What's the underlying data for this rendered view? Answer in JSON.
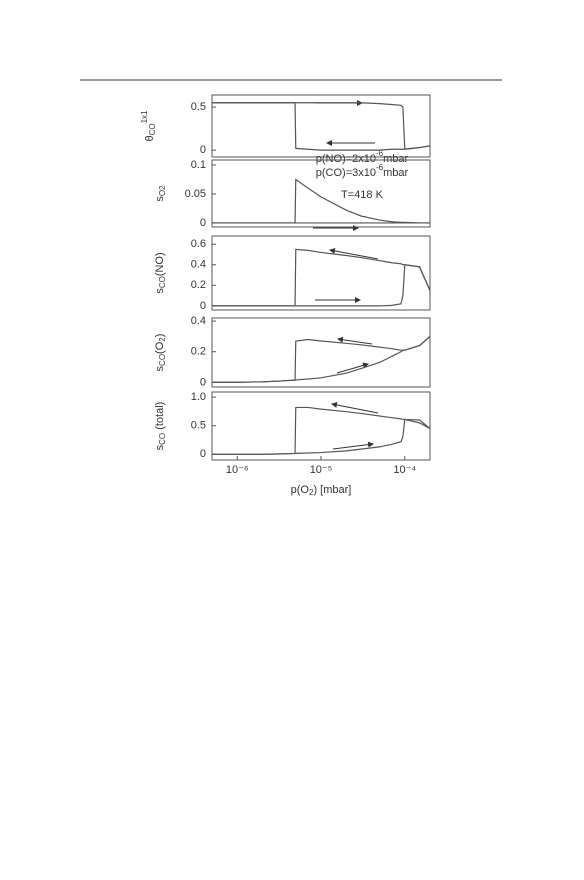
{
  "chart_data": [
    {
      "type": "line",
      "ylabel": [
        [
          "θ",
          "normal"
        ],
        [
          "CO",
          "sub"
        ],
        [
          "1x1",
          "sup"
        ]
      ],
      "xlog": true,
      "xlim": [
        5e-07,
        0.0002
      ],
      "ylim": [
        -0.08,
        0.64
      ],
      "yticks": [
        0,
        0.5
      ],
      "x": [
        5e-07,
        1e-06,
        2e-06,
        3e-06,
        4e-06,
        4.9e-06,
        5e-06,
        7e-06,
        1e-05,
        2e-05,
        3e-05,
        5e-05,
        7e-05,
        9e-05,
        9.5e-05,
        0.0001,
        0.00015,
        0.0002
      ],
      "annotations": [
        [
          [
            "p(NO)=2x10",
            "normal"
          ],
          [
            "-6",
            "sup"
          ],
          [
            "mbar",
            "normal"
          ]
        ],
        [
          [
            "p(CO)=3x10",
            "normal"
          ],
          [
            "-6",
            "sup"
          ],
          [
            "mbar",
            "normal"
          ]
        ],
        [
          [
            "T=418 K",
            "normal"
          ]
        ]
      ],
      "series": [
        {
          "color": "#555555",
          "values": [
            0.55,
            0.55,
            0.55,
            0.55,
            0.55,
            0.55,
            0.55,
            0.55,
            0.55,
            0.55,
            0.55,
            0.54,
            0.53,
            0.52,
            0.5,
            0.01,
            0.03,
            0.05
          ]
        },
        {
          "color": "#555555",
          "values": [
            0.55,
            0.55,
            0.55,
            0.55,
            0.55,
            0.55,
            0.02,
            0.01,
            0.0,
            0.0,
            0.0,
            0.0,
            0.01,
            0.01,
            0.01,
            0.01,
            0.03,
            0.05
          ]
        }
      ]
    },
    {
      "type": "line",
      "ylabel": [
        [
          "s",
          "normal"
        ],
        [
          "O2",
          "sub"
        ]
      ],
      "xlog": true,
      "xlim": [
        5e-07,
        0.0002
      ],
      "ylim": [
        -0.007,
        0.1086
      ],
      "yticks": [
        0,
        0.05,
        0.1
      ],
      "x": [
        5e-07,
        1e-06,
        2e-06,
        3e-06,
        4e-06,
        4.9e-06,
        5e-06,
        7e-06,
        1e-05,
        2e-05,
        3e-05,
        5e-05,
        7e-05,
        9e-05,
        9.5e-05,
        0.0001,
        0.00015,
        0.0002
      ],
      "series": [
        {
          "color": "#555555",
          "values": [
            0,
            0,
            0,
            0,
            0,
            0,
            0,
            0,
            0,
            0,
            0,
            0,
            0,
            0,
            0,
            0,
            0,
            0
          ]
        },
        {
          "color": "#555555",
          "values": [
            0,
            0,
            0,
            0,
            0,
            0,
            0.075,
            0.06,
            0.045,
            0.022,
            0.012,
            0.005,
            0.002,
            0.001,
            0.001,
            0.001,
            0,
            0
          ]
        }
      ]
    },
    {
      "type": "line",
      "ylabel": [
        [
          "s",
          "normal"
        ],
        [
          "CO",
          "sub"
        ],
        [
          "(NO)",
          "normal"
        ]
      ],
      "xlog": true,
      "xlim": [
        5e-07,
        0.0002
      ],
      "ylim": [
        -0.04,
        0.68
      ],
      "yticks": [
        0,
        0.2,
        0.4,
        0.6
      ],
      "x": [
        5e-07,
        1e-06,
        2e-06,
        3e-06,
        4e-06,
        4.9e-06,
        5e-06,
        7e-06,
        1e-05,
        2e-05,
        3e-05,
        5e-05,
        7e-05,
        9e-05,
        9.5e-05,
        0.0001,
        0.00015,
        0.0002
      ],
      "series": [
        {
          "color": "#555555",
          "values": [
            0,
            0,
            0,
            0,
            0,
            0,
            0,
            0,
            0,
            0,
            0,
            0,
            0.005,
            0.02,
            0.1,
            0.4,
            0.38,
            0.15
          ]
        },
        {
          "color": "#555555",
          "values": [
            0,
            0,
            0,
            0,
            0,
            0,
            0.55,
            0.54,
            0.52,
            0.49,
            0.47,
            0.44,
            0.42,
            0.41,
            0.4,
            0.4,
            0.38,
            0.15
          ]
        }
      ]
    },
    {
      "type": "line",
      "ylabel": [
        [
          "s",
          "normal"
        ],
        [
          "CO",
          "sub"
        ],
        [
          "(O",
          "normal"
        ],
        [
          "2",
          "sub"
        ],
        [
          ")",
          "normal"
        ]
      ],
      "xlog": true,
      "xlim": [
        5e-07,
        0.0002
      ],
      "ylim": [
        -0.03,
        0.42
      ],
      "yticks": [
        0,
        0.2,
        0.4
      ],
      "x": [
        5e-07,
        1e-06,
        2e-06,
        3e-06,
        4e-06,
        4.9e-06,
        5e-06,
        7e-06,
        1e-05,
        2e-05,
        3e-05,
        5e-05,
        7e-05,
        9e-05,
        9.5e-05,
        0.0001,
        0.00015,
        0.0002
      ],
      "series": [
        {
          "color": "#555555",
          "values": [
            0,
            0.001,
            0.004,
            0.008,
            0.012,
            0.015,
            0.016,
            0.022,
            0.03,
            0.06,
            0.09,
            0.13,
            0.17,
            0.2,
            0.21,
            0.21,
            0.24,
            0.3
          ]
        },
        {
          "color": "#555555",
          "values": [
            0,
            0.001,
            0.004,
            0.008,
            0.012,
            0.015,
            0.27,
            0.28,
            0.27,
            0.255,
            0.245,
            0.23,
            0.22,
            0.21,
            0.21,
            0.21,
            0.24,
            0.3
          ]
        }
      ]
    },
    {
      "type": "line",
      "ylabel": [
        [
          "s",
          "normal"
        ],
        [
          "CO",
          "sub"
        ],
        [
          " (total)",
          "normal"
        ]
      ],
      "xlabel": [
        [
          "p(O",
          "normal"
        ],
        [
          "2",
          "sub"
        ],
        [
          ") [mbar]",
          "normal"
        ]
      ],
      "xlog": true,
      "xlim": [
        5e-07,
        0.0002
      ],
      "ylim": [
        -0.1,
        1.09
      ],
      "yticks": [
        0,
        0.5,
        {
          "value": 1,
          "label": "1.0"
        }
      ],
      "xticks": [
        {
          "value": 1e-06,
          "label": "10⁻⁶"
        },
        {
          "value": 1e-05,
          "label": "10⁻⁵"
        },
        {
          "value": 0.0001,
          "label": "10⁻⁴"
        }
      ],
      "x": [
        5e-07,
        1e-06,
        2e-06,
        3e-06,
        4e-06,
        4.9e-06,
        5e-06,
        7e-06,
        1e-05,
        2e-05,
        3e-05,
        5e-05,
        7e-05,
        9e-05,
        9.5e-05,
        0.0001,
        0.00015,
        0.0002
      ],
      "series": [
        {
          "color": "#555555",
          "values": [
            0,
            0,
            0,
            0.005,
            0.01,
            0.015,
            0.016,
            0.022,
            0.03,
            0.06,
            0.09,
            0.13,
            0.175,
            0.22,
            0.31,
            0.61,
            0.55,
            0.45
          ]
        },
        {
          "color": "#555555",
          "values": [
            0,
            0,
            0,
            0.005,
            0.01,
            0.015,
            0.82,
            0.82,
            0.79,
            0.745,
            0.715,
            0.67,
            0.64,
            0.62,
            0.61,
            0.61,
            0.6,
            0.45
          ]
        }
      ]
    }
  ]
}
